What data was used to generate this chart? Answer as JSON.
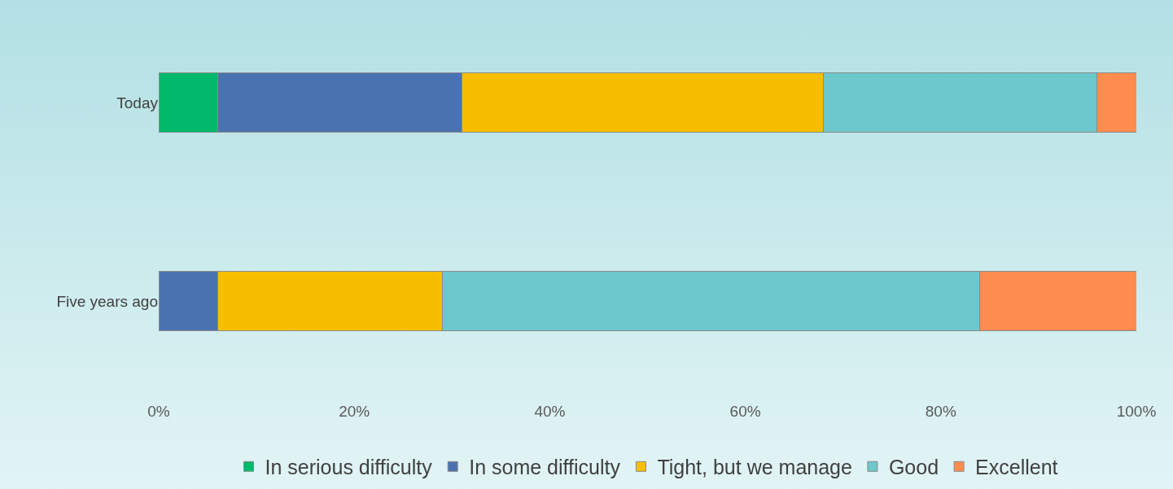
{
  "chart_data": {
    "type": "bar",
    "orientation": "horizontal",
    "stacked": true,
    "categories": [
      "Today",
      "Five years ago"
    ],
    "series": [
      {
        "name": "In serious difficulty",
        "color": "#00b96b",
        "values": [
          6,
          0
        ]
      },
      {
        "name": "In some difficulty",
        "color": "#4a72b0",
        "values": [
          25,
          6
        ]
      },
      {
        "name": "Tight, but we manage",
        "color": "#f7be00",
        "values": [
          37,
          23
        ]
      },
      {
        "name": "Good",
        "color": "#6cc8cc",
        "values": [
          28,
          55
        ]
      },
      {
        "name": "Excellent",
        "color": "#ff8c4f",
        "values": [
          4,
          16
        ]
      }
    ],
    "xlim": [
      0,
      100
    ],
    "xticks": [
      {
        "value": 0,
        "label": "0%"
      },
      {
        "value": 20,
        "label": "20%"
      },
      {
        "value": 40,
        "label": "40%"
      },
      {
        "value": 60,
        "label": "60%"
      },
      {
        "value": 80,
        "label": "80%"
      },
      {
        "value": 100,
        "label": "100%"
      }
    ],
    "grid": false,
    "legend": "bottom"
  }
}
